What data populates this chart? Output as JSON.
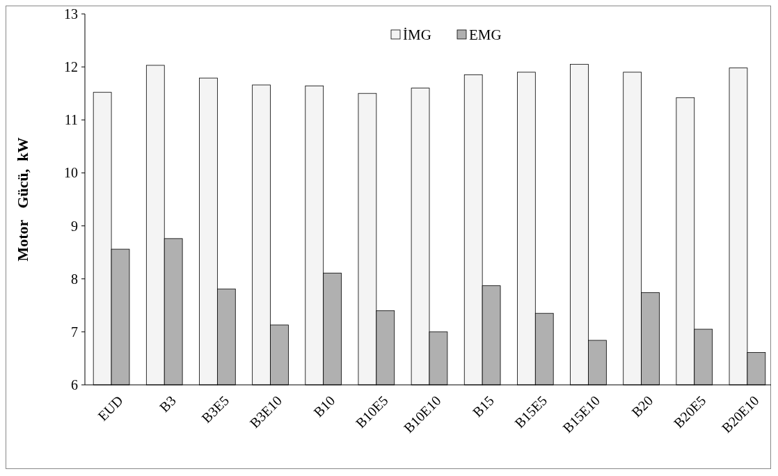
{
  "chart_data": {
    "type": "bar",
    "ylabel": "Motor   Gücü,  kW",
    "categories": [
      "EUD",
      "B3",
      "B3E5",
      "B3E10",
      "B10",
      "B10E5",
      "B10E10",
      "B15",
      "B15E5",
      "B15E10",
      "B20",
      "B20E5",
      "B20E10"
    ],
    "series": [
      {
        "name": "İMG",
        "color": "#f4f4f4",
        "values": [
          11.52,
          12.03,
          11.79,
          11.66,
          11.64,
          11.5,
          11.6,
          11.85,
          11.9,
          12.05,
          11.9,
          11.42,
          11.98
        ]
      },
      {
        "name": "EMG",
        "color": "#b0b0b0",
        "values": [
          8.56,
          8.76,
          7.81,
          7.13,
          8.11,
          7.4,
          7.0,
          7.87,
          7.35,
          6.84,
          7.74,
          7.05,
          6.61
        ]
      }
    ],
    "ylim": [
      6,
      13
    ],
    "yticks": [
      6,
      7,
      8,
      9,
      10,
      11,
      12,
      13
    ],
    "grid": false,
    "legend": "top"
  }
}
